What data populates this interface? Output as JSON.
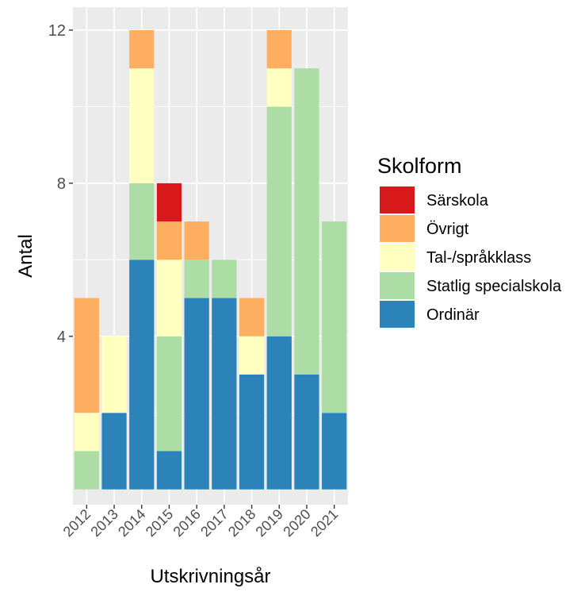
{
  "chart_data": {
    "type": "bar",
    "stacked": true,
    "categories": [
      "2012",
      "2013",
      "2014",
      "2015",
      "2016",
      "2017",
      "2018",
      "2019",
      "2020",
      "2021"
    ],
    "series": [
      {
        "name": "Ordinär",
        "color": "#2b83ba",
        "values": [
          0,
          2,
          6,
          1,
          5,
          5,
          3,
          4,
          3,
          2
        ]
      },
      {
        "name": "Statlig specialskola",
        "color": "#abdda4",
        "values": [
          1,
          0,
          2,
          3,
          1,
          1,
          0,
          6,
          8,
          5
        ]
      },
      {
        "name": "Tal-/språkklass",
        "color": "#ffffbf",
        "values": [
          1,
          2,
          3,
          2,
          0,
          0,
          1,
          1,
          0,
          0
        ]
      },
      {
        "name": "Övrigt",
        "color": "#fdae61",
        "values": [
          3,
          0,
          1,
          1,
          1,
          0,
          1,
          1,
          0,
          0
        ]
      },
      {
        "name": "Särskola",
        "color": "#d7191c",
        "values": [
          0,
          0,
          0,
          1,
          0,
          0,
          0,
          0,
          0,
          0
        ]
      }
    ],
    "legend_order": [
      "Särskola",
      "Övrigt",
      "Tal-/språkklass",
      "Statlig specialskola",
      "Ordinär"
    ],
    "legend_title": "Skolform",
    "legend_position": "right",
    "xlabel": "Utskrivningsår",
    "ylabel": "Antal",
    "ylim": [
      -0.4,
      12.6
    ],
    "yticks": [
      4,
      8,
      12
    ],
    "grid": true,
    "panel_background": "#ebebeb"
  }
}
